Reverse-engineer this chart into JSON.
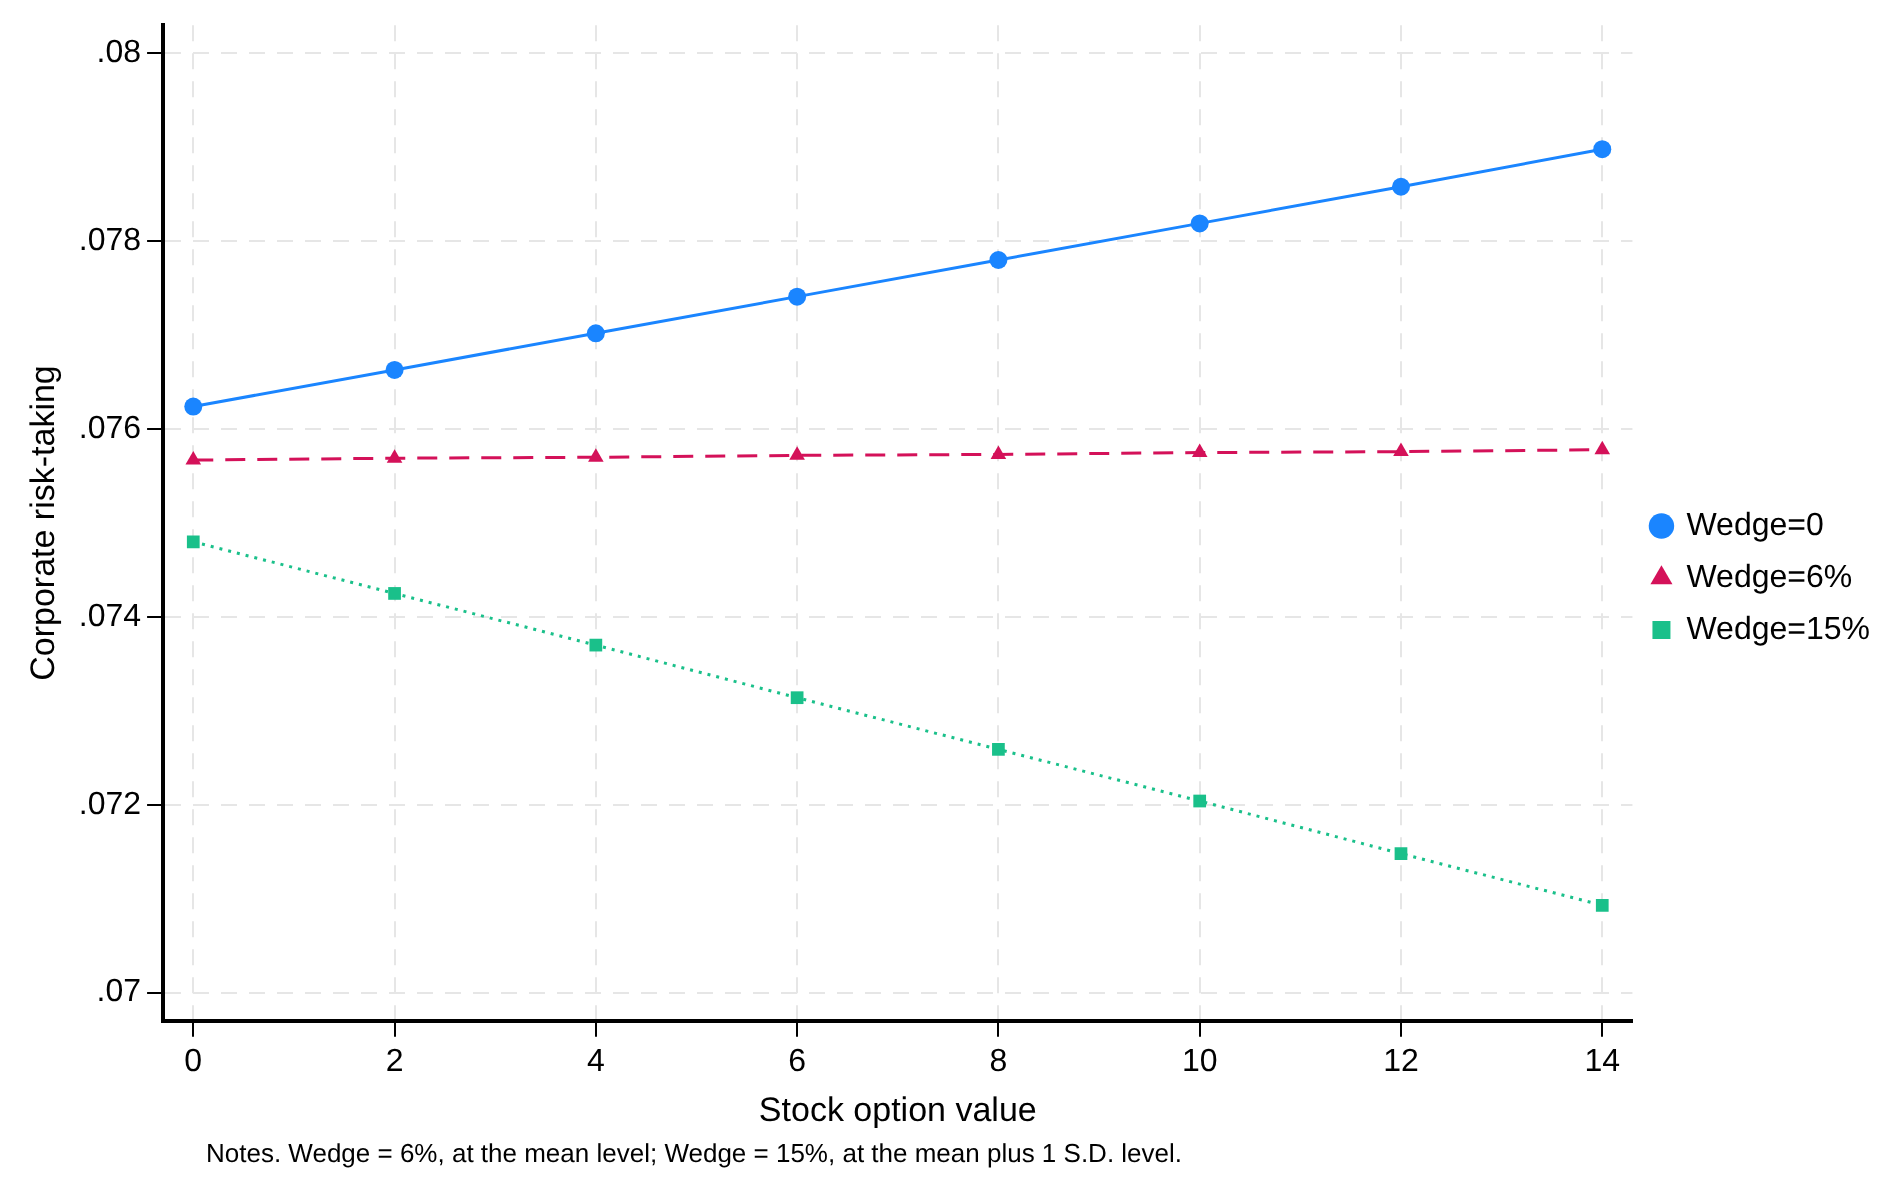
{
  "chart_data": {
    "type": "line",
    "xlabel": "Stock option value",
    "ylabel": "Corporate risk-taking",
    "x": [
      0,
      2,
      4,
      6,
      8,
      10,
      12,
      14
    ],
    "xlim": [
      -0.3,
      14.3
    ],
    "xticks": [
      0,
      2,
      4,
      6,
      8,
      10,
      12,
      14
    ],
    "ylim": [
      0.0697,
      0.0803
    ],
    "yticks": [
      {
        "value": 0.07,
        "label": ".07"
      },
      {
        "value": 0.072,
        "label": ".072"
      },
      {
        "value": 0.074,
        "label": ".074"
      },
      {
        "value": 0.076,
        "label": ".076"
      },
      {
        "value": 0.078,
        "label": ".078"
      },
      {
        "value": 0.08,
        "label": ".08"
      }
    ],
    "grid": true,
    "legend": "right",
    "series": [
      {
        "name": "Wedge=0",
        "color": "#1a85ff",
        "marker": "circle",
        "line_style": "solid",
        "values": [
          0.07624,
          0.07663,
          0.07702,
          0.07741,
          0.0778,
          0.07819,
          0.07858,
          0.07898
        ]
      },
      {
        "name": "Wedge=6%",
        "color": "#d41159",
        "marker": "triangle",
        "line_style": "dashed",
        "values": [
          0.07567,
          0.07569,
          0.0757,
          0.07572,
          0.07573,
          0.07575,
          0.07576,
          0.07578
        ]
      },
      {
        "name": "Wedge=15%",
        "color": "#1ac08a",
        "marker": "square",
        "line_style": "dotted",
        "values": [
          0.0748,
          0.07425,
          0.0737,
          0.07314,
          0.07259,
          0.07204,
          0.07148,
          0.07093
        ]
      }
    ],
    "annotations": [
      "Notes. Wedge = 6%, at the mean level; Wedge = 15%, at the mean plus 1 S.D. level."
    ]
  }
}
